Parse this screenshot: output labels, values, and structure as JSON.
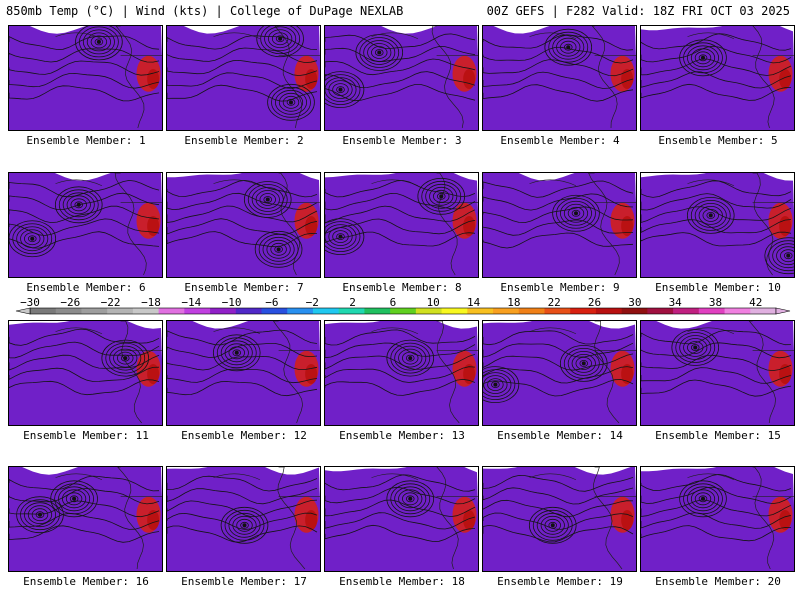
{
  "header": {
    "left": "850mb Temp (°C) | Wind (kts) | College of DuPage NEXLAB",
    "right": "00Z GEFS | F282 Valid: 18Z FRI OCT 03 2025"
  },
  "colorbar": {
    "ticks": [
      -30,
      -26,
      -22,
      -18,
      -14,
      -10,
      -6,
      -2,
      2,
      6,
      10,
      14,
      18,
      22,
      26,
      30,
      34,
      38,
      42
    ],
    "colors": [
      "#7a7a7a",
      "#8c8c8c",
      "#9e9e9e",
      "#b4b4b4",
      "#c8c8c8",
      "#e070e0",
      "#c040e0",
      "#9020c8",
      "#5028c8",
      "#2850e0",
      "#2890f0",
      "#20c8f0",
      "#20d8b0",
      "#20c060",
      "#60d020",
      "#d0e020",
      "#f8f820",
      "#f8c020",
      "#f8a020",
      "#f08018",
      "#e85018",
      "#d82010",
      "#b81010",
      "#901010",
      "#a01040",
      "#c02080",
      "#e040c0",
      "#f080e0",
      "#e0b0e0"
    ],
    "min": -30,
    "max": 44
  },
  "map_palette": [
    "#7020c8",
    "#4040d0",
    "#2890f0",
    "#20c8e8",
    "#20c090",
    "#60c040",
    "#c8d830",
    "#f0d820",
    "#f8b820",
    "#f8a020",
    "#f08018",
    "#e85018",
    "#d82010"
  ],
  "panels": [
    {
      "label": "Ensemble Member: 1",
      "seed": 11,
      "lows": [
        [
          0.58,
          0.15
        ]
      ]
    },
    {
      "label": "Ensemble Member: 2",
      "seed": 23,
      "lows": [
        [
          0.73,
          0.12
        ],
        [
          0.8,
          0.72
        ]
      ]
    },
    {
      "label": "Ensemble Member: 3",
      "seed": 37,
      "lows": [
        [
          0.1,
          0.6
        ],
        [
          0.35,
          0.25
        ]
      ]
    },
    {
      "label": "Ensemble Member: 4",
      "seed": 41,
      "lows": [
        [
          0.55,
          0.2
        ]
      ]
    },
    {
      "label": "Ensemble Member: 5",
      "seed": 53,
      "lows": [
        [
          0.4,
          0.3
        ]
      ]
    },
    {
      "label": "Ensemble Member: 6",
      "seed": 67,
      "lows": [
        [
          0.45,
          0.3
        ],
        [
          0.15,
          0.62
        ]
      ]
    },
    {
      "label": "Ensemble Member: 7",
      "seed": 71,
      "lows": [
        [
          0.65,
          0.25
        ],
        [
          0.72,
          0.72
        ]
      ]
    },
    {
      "label": "Ensemble Member: 8",
      "seed": 83,
      "lows": [
        [
          0.1,
          0.6
        ],
        [
          0.75,
          0.22
        ]
      ]
    },
    {
      "label": "Ensemble Member: 9",
      "seed": 97,
      "lows": [
        [
          0.6,
          0.38
        ]
      ]
    },
    {
      "label": "Ensemble Member: 10",
      "seed": 101,
      "lows": [
        [
          0.45,
          0.4
        ],
        [
          0.95,
          0.78
        ]
      ]
    },
    {
      "label": "Ensemble Member: 11",
      "seed": 113,
      "lows": [
        [
          0.75,
          0.35
        ]
      ]
    },
    {
      "label": "Ensemble Member: 12",
      "seed": 127,
      "lows": [
        [
          0.45,
          0.3
        ]
      ]
    },
    {
      "label": "Ensemble Member: 13",
      "seed": 131,
      "lows": [
        [
          0.55,
          0.35
        ]
      ]
    },
    {
      "label": "Ensemble Member: 14",
      "seed": 149,
      "lows": [
        [
          0.65,
          0.4
        ],
        [
          0.08,
          0.6
        ]
      ]
    },
    {
      "label": "Ensemble Member: 15",
      "seed": 157,
      "lows": [
        [
          0.35,
          0.25
        ]
      ]
    },
    {
      "label": "Ensemble Member: 16",
      "seed": 163,
      "lows": [
        [
          0.42,
          0.3
        ],
        [
          0.2,
          0.45
        ]
      ]
    },
    {
      "label": "Ensemble Member: 17",
      "seed": 173,
      "lows": [
        [
          0.5,
          0.55
        ]
      ]
    },
    {
      "label": "Ensemble Member: 18",
      "seed": 181,
      "lows": [
        [
          0.55,
          0.3
        ]
      ]
    },
    {
      "label": "Ensemble Member: 19",
      "seed": 191,
      "lows": [
        [
          0.45,
          0.55
        ]
      ]
    },
    {
      "label": "Ensemble Member: 20",
      "seed": 199,
      "lows": [
        [
          0.4,
          0.3
        ]
      ]
    }
  ]
}
